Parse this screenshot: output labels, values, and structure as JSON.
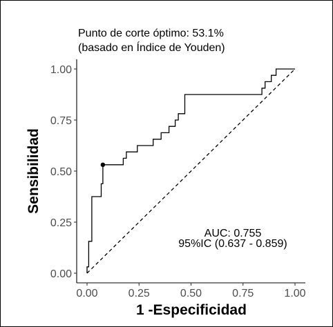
{
  "chart_data": {
    "type": "line",
    "title": "Punto de corte óptimo: 53.1%",
    "subtitle": "(basado en Índice de Youden)",
    "xlabel": "1 -Especificidad",
    "ylabel": "Sensibilidad",
    "xlim": [
      0,
      1
    ],
    "ylim": [
      0,
      1
    ],
    "x_ticks": [
      "0.00",
      "0.25",
      "0.50",
      "0.75",
      "1.00"
    ],
    "y_ticks": [
      "0.00",
      "0.25",
      "0.50",
      "0.75",
      "1.00"
    ],
    "grid": false,
    "series": [
      {
        "style": "step",
        "points": [
          [
            0.0,
            0.0
          ],
          [
            0.0,
            0.031
          ],
          [
            0.008,
            0.031
          ],
          [
            0.008,
            0.156
          ],
          [
            0.023,
            0.156
          ],
          [
            0.023,
            0.375
          ],
          [
            0.068,
            0.375
          ],
          [
            0.068,
            0.438
          ],
          [
            0.076,
            0.438
          ],
          [
            0.076,
            0.531
          ],
          [
            0.174,
            0.531
          ],
          [
            0.174,
            0.563
          ],
          [
            0.189,
            0.563
          ],
          [
            0.189,
            0.594
          ],
          [
            0.242,
            0.594
          ],
          [
            0.242,
            0.625
          ],
          [
            0.318,
            0.625
          ],
          [
            0.318,
            0.656
          ],
          [
            0.356,
            0.656
          ],
          [
            0.356,
            0.688
          ],
          [
            0.394,
            0.688
          ],
          [
            0.394,
            0.719
          ],
          [
            0.424,
            0.719
          ],
          [
            0.424,
            0.75
          ],
          [
            0.439,
            0.75
          ],
          [
            0.439,
            0.781
          ],
          [
            0.47,
            0.781
          ],
          [
            0.47,
            0.875
          ],
          [
            0.841,
            0.875
          ],
          [
            0.841,
            0.906
          ],
          [
            0.856,
            0.906
          ],
          [
            0.856,
            0.938
          ],
          [
            0.886,
            0.938
          ],
          [
            0.886,
            0.969
          ],
          [
            0.909,
            0.969
          ],
          [
            0.909,
            1.0
          ],
          [
            1.0,
            1.0
          ]
        ]
      },
      {
        "style": "dashed",
        "points": [
          [
            0,
            0
          ],
          [
            1,
            1
          ]
        ]
      }
    ],
    "optimal_point": {
      "x": 0.076,
      "y": 0.531
    },
    "annotations": [
      "AUC: 0.755",
      "95%IC (0.637 - 0.859)"
    ]
  }
}
